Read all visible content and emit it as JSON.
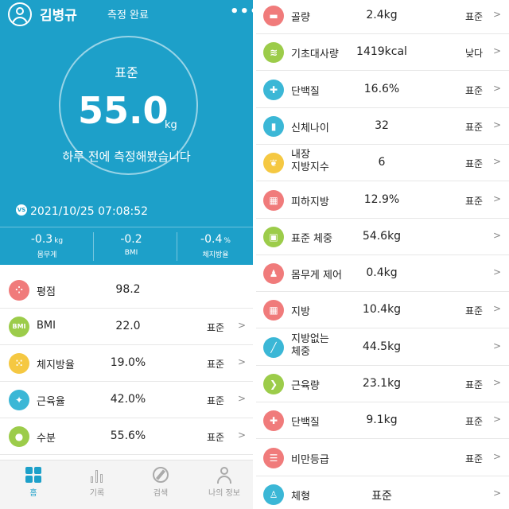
{
  "header": {
    "user_name": "김병규",
    "measure_status": "측정 완료",
    "menu_icon": "more-dots-icon"
  },
  "summary": {
    "grade": "표준",
    "weight": "55.0",
    "weight_unit": "kg",
    "last_measured": "하루 전에 측정해봤습니다",
    "vs_badge": "VS",
    "date": "2021/10/25 07:08:52",
    "changes": [
      {
        "value": "-0.3",
        "unit": "kg",
        "label": "몸무게"
      },
      {
        "value": "-0.2",
        "unit": "",
        "label": "BMI"
      },
      {
        "value": "-0.4",
        "unit": "%",
        "label": "체지방율"
      }
    ]
  },
  "left_metrics": [
    {
      "name": "평점",
      "value": "98.2",
      "status": "",
      "chevron": "",
      "icon": "score-icon",
      "icon_text": "",
      "color": "#f07b7b"
    },
    {
      "name": "BMI",
      "value": "22.0",
      "status": "표준",
      "chevron": ">",
      "icon": "bmi-icon",
      "icon_text": "BMI",
      "color": "#9ccc4a"
    },
    {
      "name": "체지방율",
      "value": "19.0%",
      "status": "표준",
      "chevron": ">",
      "icon": "body-fat-icon",
      "icon_text": "",
      "color": "#f5c842"
    },
    {
      "name": "근육율",
      "value": "42.0%",
      "status": "표준",
      "chevron": ">",
      "icon": "muscle-rate-icon",
      "icon_text": "",
      "color": "#3bb7d6"
    },
    {
      "name": "수분",
      "value": "55.6%",
      "status": "표준",
      "chevron": ">",
      "icon": "water-drop-icon",
      "icon_text": "",
      "color": "#9ccc4a"
    }
  ],
  "bottom_nav": [
    {
      "label": "홈",
      "icon": "home-grid-icon",
      "active": true
    },
    {
      "label": "기록",
      "icon": "chart-bars-icon",
      "active": false
    },
    {
      "label": "검색",
      "icon": "compass-icon",
      "active": false
    },
    {
      "label": "나의 정보",
      "icon": "profile-icon",
      "active": false
    }
  ],
  "right_metrics": [
    {
      "name": "골량",
      "value": "2.4kg",
      "status": "표준",
      "chevron": ">",
      "icon": "bone-icon",
      "color": "#f07b7b"
    },
    {
      "name": "기초대사량",
      "value": "1419kcal",
      "status": "낮다",
      "chevron": ">",
      "icon": "metabolism-icon",
      "color": "#9ccc4a"
    },
    {
      "name": "단백질",
      "value": "16.6%",
      "status": "표준",
      "chevron": ">",
      "icon": "protein-icon",
      "color": "#3bb7d6"
    },
    {
      "name": "신체나이",
      "value": "32",
      "status": "표준",
      "chevron": ">",
      "icon": "body-age-icon",
      "color": "#3bb7d6"
    },
    {
      "name": "내장\n지방지수",
      "value": "6",
      "status": "표준",
      "chevron": ">",
      "icon": "visceral-fat-icon",
      "color": "#f5c842"
    },
    {
      "name": "피하지방",
      "value": "12.9%",
      "status": "표준",
      "chevron": ">",
      "icon": "subcutaneous-fat-icon",
      "color": "#f07b7b"
    },
    {
      "name": "표준 체중",
      "value": "54.6kg",
      "status": "",
      "chevron": ">",
      "icon": "standard-weight-icon",
      "color": "#9ccc4a"
    },
    {
      "name": "몸무게 제어",
      "value": "0.4kg",
      "status": "",
      "chevron": ">",
      "icon": "weight-control-icon",
      "color": "#f07b7b"
    },
    {
      "name": "지방",
      "value": "10.4kg",
      "status": "표준",
      "chevron": ">",
      "icon": "fat-icon",
      "color": "#f07b7b"
    },
    {
      "name": "지방없는\n체중",
      "value": "44.5kg",
      "status": "",
      "chevron": ">",
      "icon": "lean-mass-icon",
      "color": "#3bb7d6"
    },
    {
      "name": "근육량",
      "value": "23.1kg",
      "status": "표준",
      "chevron": ">",
      "icon": "muscle-mass-icon",
      "color": "#9ccc4a"
    },
    {
      "name": "단백질",
      "value": "9.1kg",
      "status": "표준",
      "chevron": ">",
      "icon": "protein-mass-icon",
      "color": "#f07b7b"
    },
    {
      "name": "비만등급",
      "value": "",
      "status": "표준",
      "chevron": ">",
      "icon": "obesity-grade-icon",
      "color": "#f07b7b"
    },
    {
      "name": "체형",
      "value": "표준",
      "status": "",
      "chevron": ">",
      "icon": "body-type-icon",
      "color": "#3bb7d6"
    }
  ],
  "colors": {
    "brand": "#1da0c9"
  }
}
